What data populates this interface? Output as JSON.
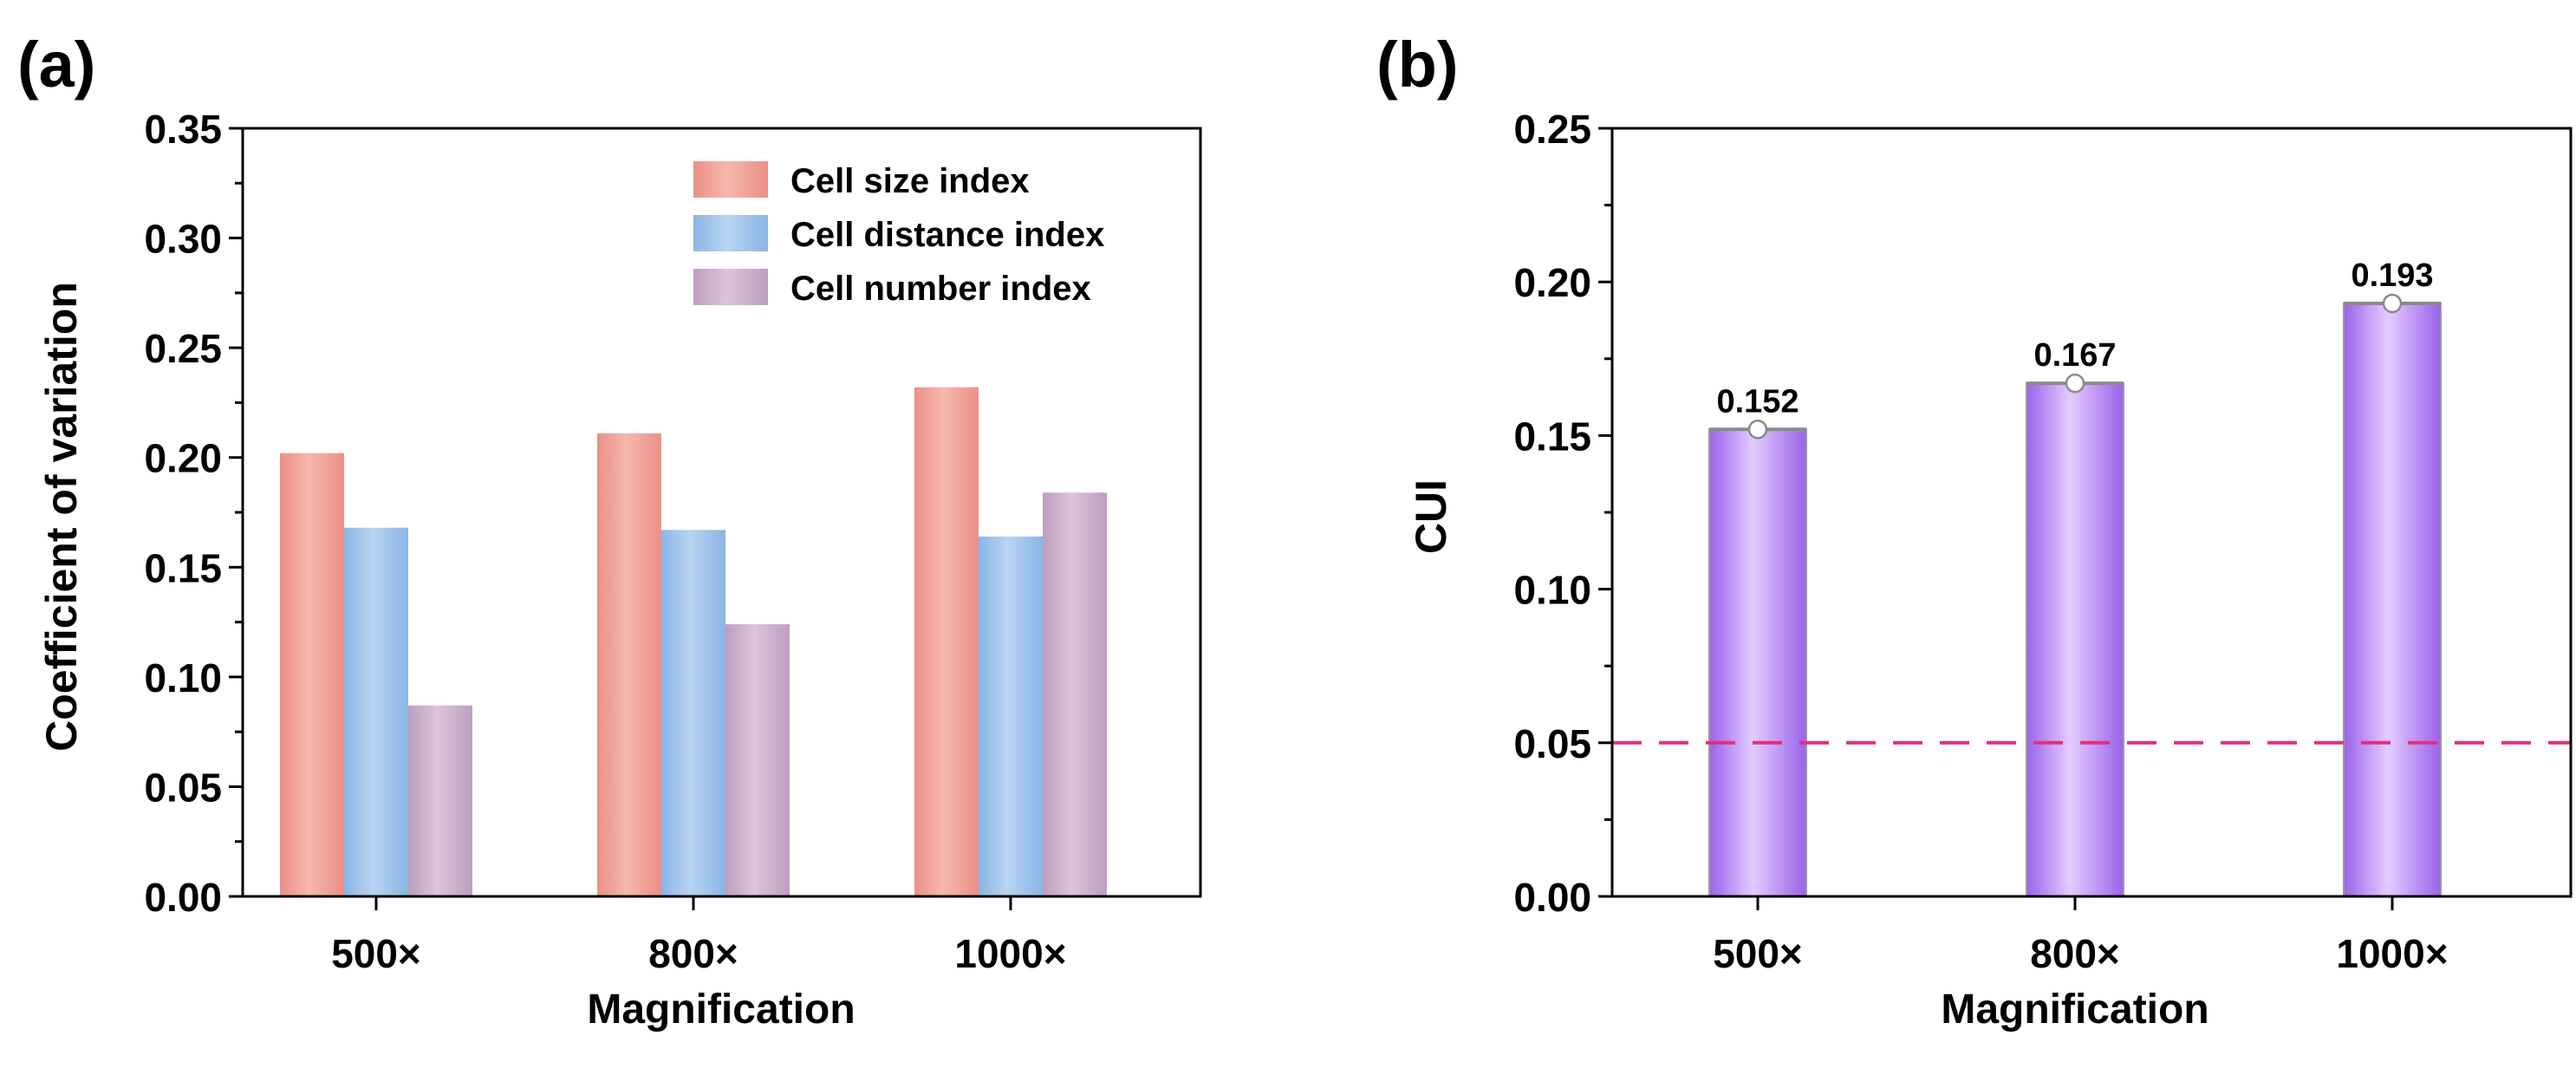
{
  "chart_data": [
    {
      "panel_label": "(a)",
      "type": "bar",
      "title": "",
      "xlabel": "Magnification",
      "ylabel": "Coefficient of variation",
      "categories": [
        "500×",
        "800×",
        "1000×"
      ],
      "ylim": [
        0,
        0.35
      ],
      "yticks": [
        "0.00",
        "0.05",
        "0.10",
        "0.15",
        "0.20",
        "0.25",
        "0.30",
        "0.35"
      ],
      "grid": false,
      "legend_position": "top-right",
      "series": [
        {
          "name": "Cell size index",
          "values": [
            0.202,
            0.211,
            0.232
          ],
          "color_light": "#f6b8ae",
          "color_dark": "#eb8f86"
        },
        {
          "name": "Cell distance index",
          "values": [
            0.168,
            0.167,
            0.164
          ],
          "color_light": "#b8d4f2",
          "color_dark": "#8ab5e5"
        },
        {
          "name": "Cell number index",
          "values": [
            0.087,
            0.124,
            0.184
          ],
          "color_light": "#dcc4da",
          "color_dark": "#bc9fbf"
        }
      ]
    },
    {
      "panel_label": "(b)",
      "type": "bar",
      "title": "",
      "xlabel": "Magnification",
      "ylabel": "CUI",
      "categories": [
        "500×",
        "800×",
        "1000×"
      ],
      "ylim": [
        0,
        0.25
      ],
      "yticks": [
        "0.00",
        "0.05",
        "0.10",
        "0.15",
        "0.20",
        "0.25"
      ],
      "grid": false,
      "series": [
        {
          "name": "CUI",
          "values": [
            0.152,
            0.167,
            0.193
          ],
          "data_labels": [
            "0.152",
            "0.167",
            "0.193"
          ],
          "color_light": "#e4ccff",
          "color_dark": "#9a62ea"
        }
      ],
      "reference_line": {
        "value": 0.05,
        "style": "dashed",
        "color": "#e0307e"
      }
    }
  ]
}
